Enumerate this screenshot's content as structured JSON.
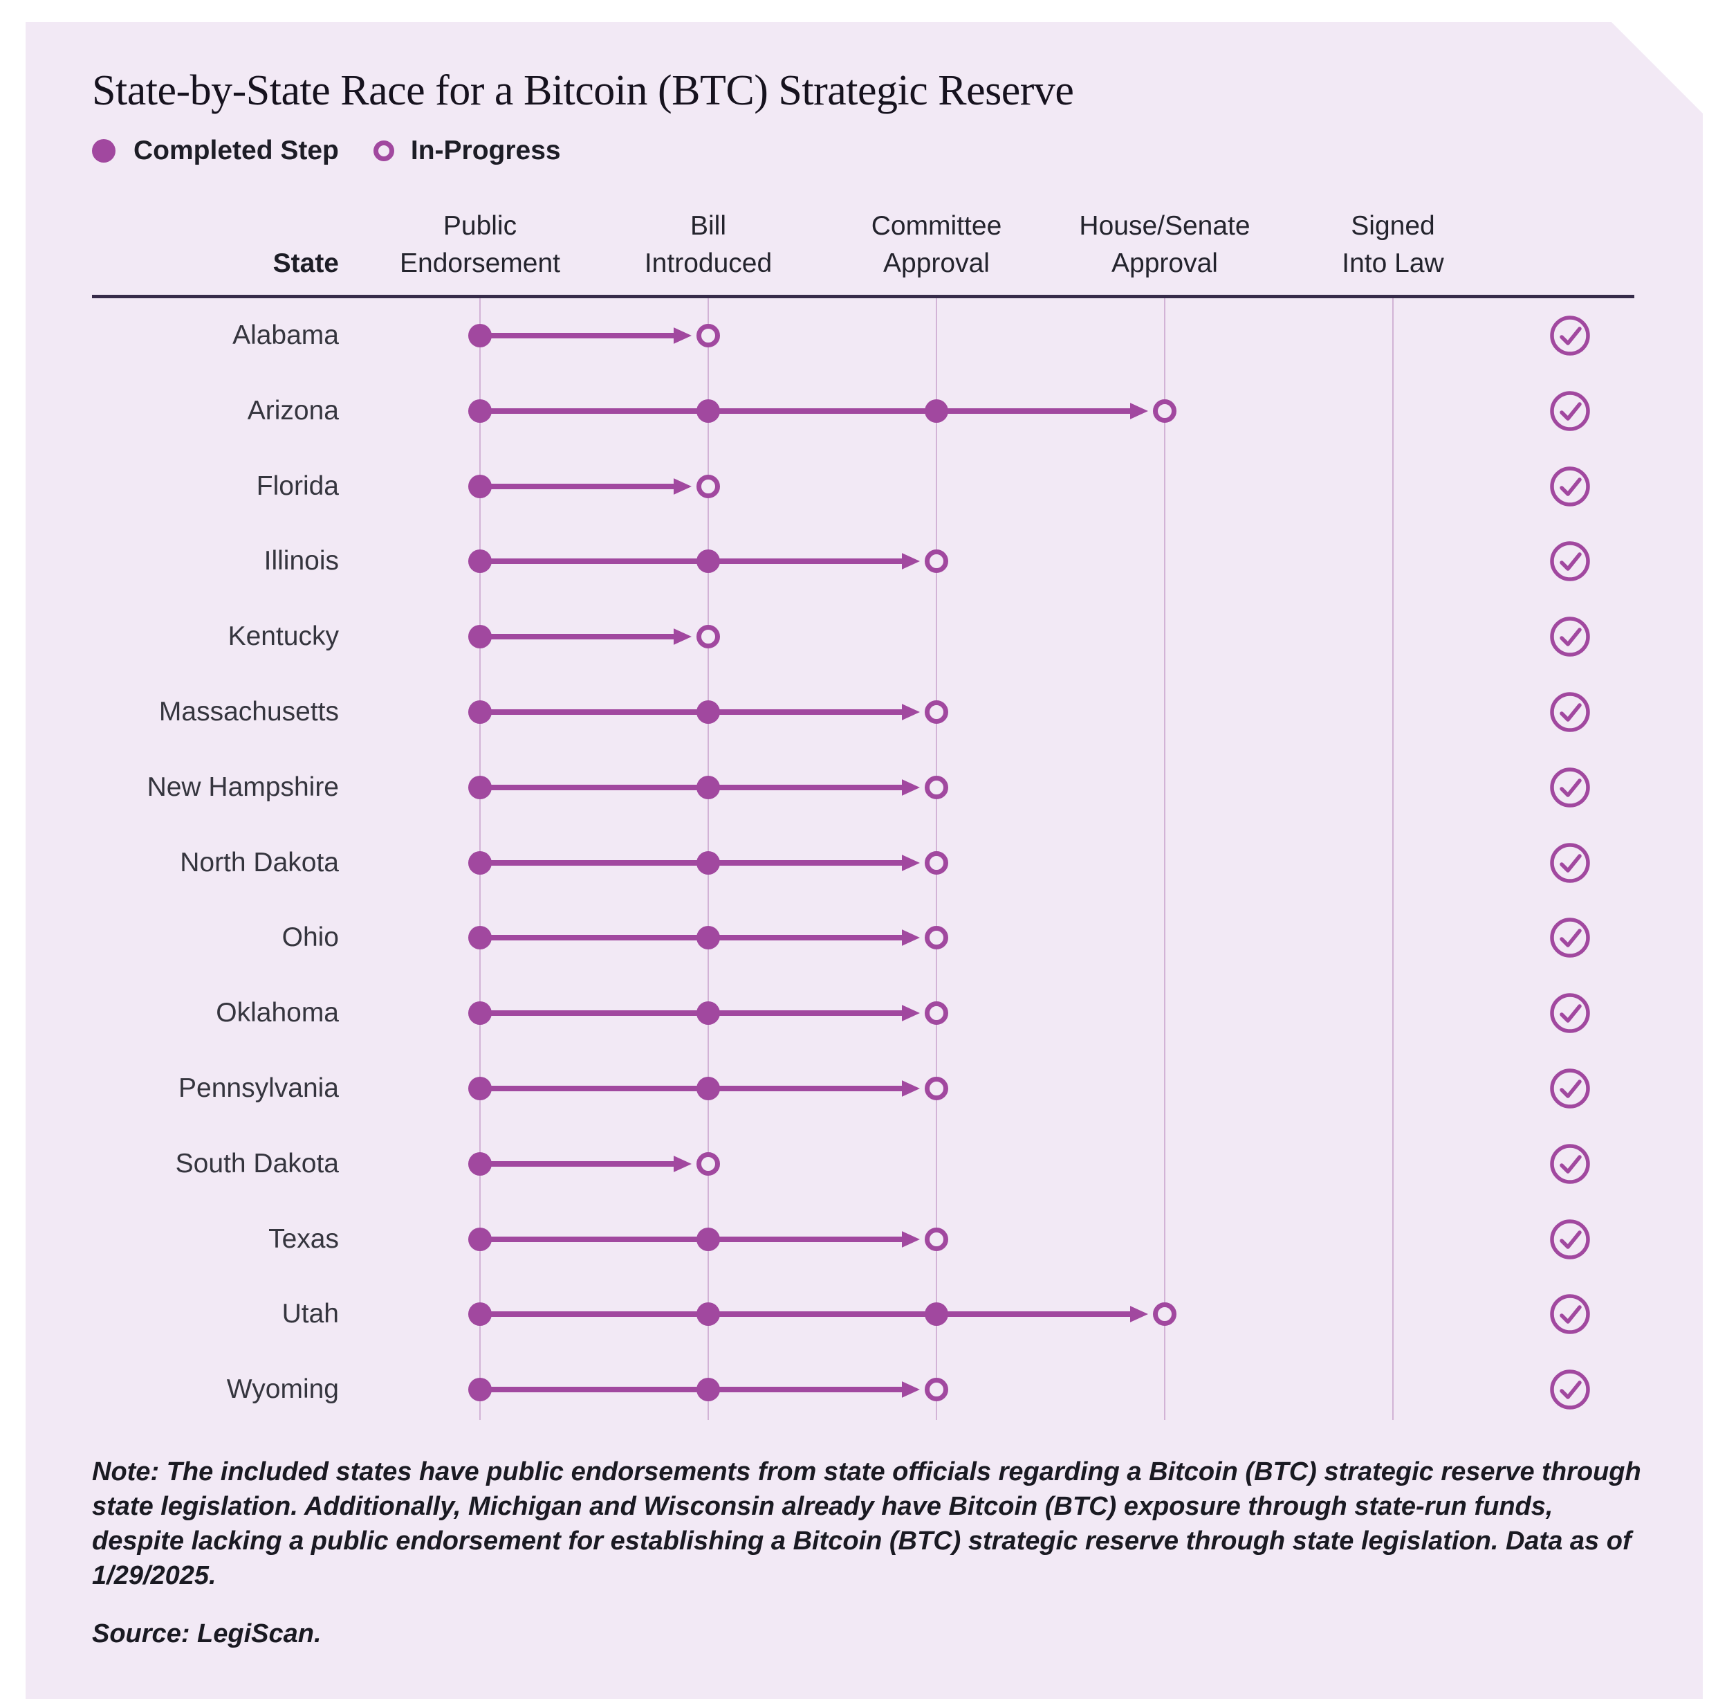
{
  "title": "State-by-State Race for a Bitcoin (BTC) Strategic Reserve",
  "legend": {
    "completed_label": "Completed Step",
    "in_progress_label": "In-Progress"
  },
  "header": {
    "state_label": "State",
    "columns": [
      {
        "line1": "Public",
        "line2": "Endorsement"
      },
      {
        "line1": "Bill",
        "line2": "Introduced"
      },
      {
        "line1": "Committee",
        "line2": "Approval"
      },
      {
        "line1": "House/Senate",
        "line2": "Approval"
      },
      {
        "line1": "Signed",
        "line2": "Into Law"
      }
    ]
  },
  "colors": {
    "accent": "#A1489F",
    "card-bg": "#F2E9F5",
    "gridline": "#D2B3D6",
    "divider": "#362B49"
  },
  "chart_data": {
    "type": "table",
    "title": "State-by-State Race for a Bitcoin (BTC) Strategic Reserve",
    "legend": [
      "Completed Step",
      "In-Progress"
    ],
    "columns": [
      "Public Endorsement",
      "Bill Introduced",
      "Committee Approval",
      "House/Senate Approval",
      "Signed Into Law"
    ],
    "row_check_icon": true,
    "rows": [
      {
        "state": "Alabama",
        "completed": [
          "Public Endorsement"
        ],
        "in_progress": "Bill Introduced"
      },
      {
        "state": "Arizona",
        "completed": [
          "Public Endorsement",
          "Bill Introduced",
          "Committee Approval"
        ],
        "in_progress": "House/Senate Approval"
      },
      {
        "state": "Florida",
        "completed": [
          "Public Endorsement"
        ],
        "in_progress": "Bill Introduced"
      },
      {
        "state": "Illinois",
        "completed": [
          "Public Endorsement",
          "Bill Introduced"
        ],
        "in_progress": "Committee Approval"
      },
      {
        "state": "Kentucky",
        "completed": [
          "Public Endorsement"
        ],
        "in_progress": "Bill Introduced"
      },
      {
        "state": "Massachusetts",
        "completed": [
          "Public Endorsement",
          "Bill Introduced"
        ],
        "in_progress": "Committee Approval"
      },
      {
        "state": "New Hampshire",
        "completed": [
          "Public Endorsement",
          "Bill Introduced"
        ],
        "in_progress": "Committee Approval"
      },
      {
        "state": "North Dakota",
        "completed": [
          "Public Endorsement",
          "Bill Introduced"
        ],
        "in_progress": "Committee Approval"
      },
      {
        "state": "Ohio",
        "completed": [
          "Public Endorsement",
          "Bill Introduced"
        ],
        "in_progress": "Committee Approval"
      },
      {
        "state": "Oklahoma",
        "completed": [
          "Public Endorsement",
          "Bill Introduced"
        ],
        "in_progress": "Committee Approval"
      },
      {
        "state": "Pennsylvania",
        "completed": [
          "Public Endorsement",
          "Bill Introduced"
        ],
        "in_progress": "Committee Approval"
      },
      {
        "state": "South Dakota",
        "completed": [
          "Public Endorsement"
        ],
        "in_progress": "Bill Introduced"
      },
      {
        "state": "Texas",
        "completed": [
          "Public Endorsement",
          "Bill Introduced"
        ],
        "in_progress": "Committee Approval"
      },
      {
        "state": "Utah",
        "completed": [
          "Public Endorsement",
          "Bill Introduced",
          "Committee Approval"
        ],
        "in_progress": "House/Senate Approval"
      },
      {
        "state": "Wyoming",
        "completed": [
          "Public Endorsement",
          "Bill Introduced"
        ],
        "in_progress": "Committee Approval"
      }
    ]
  },
  "note": "Note: The included states have public endorsements from state officials regarding a Bitcoin (BTC) strategic reserve through state legislation. Additionally, Michigan and Wisconsin already have Bitcoin (BTC) exposure through state-run funds, despite lacking a public endorsement for establishing a Bitcoin (BTC) strategic reserve through state legislation. Data as of 1/29/2025.",
  "source": "Source: LegiScan."
}
